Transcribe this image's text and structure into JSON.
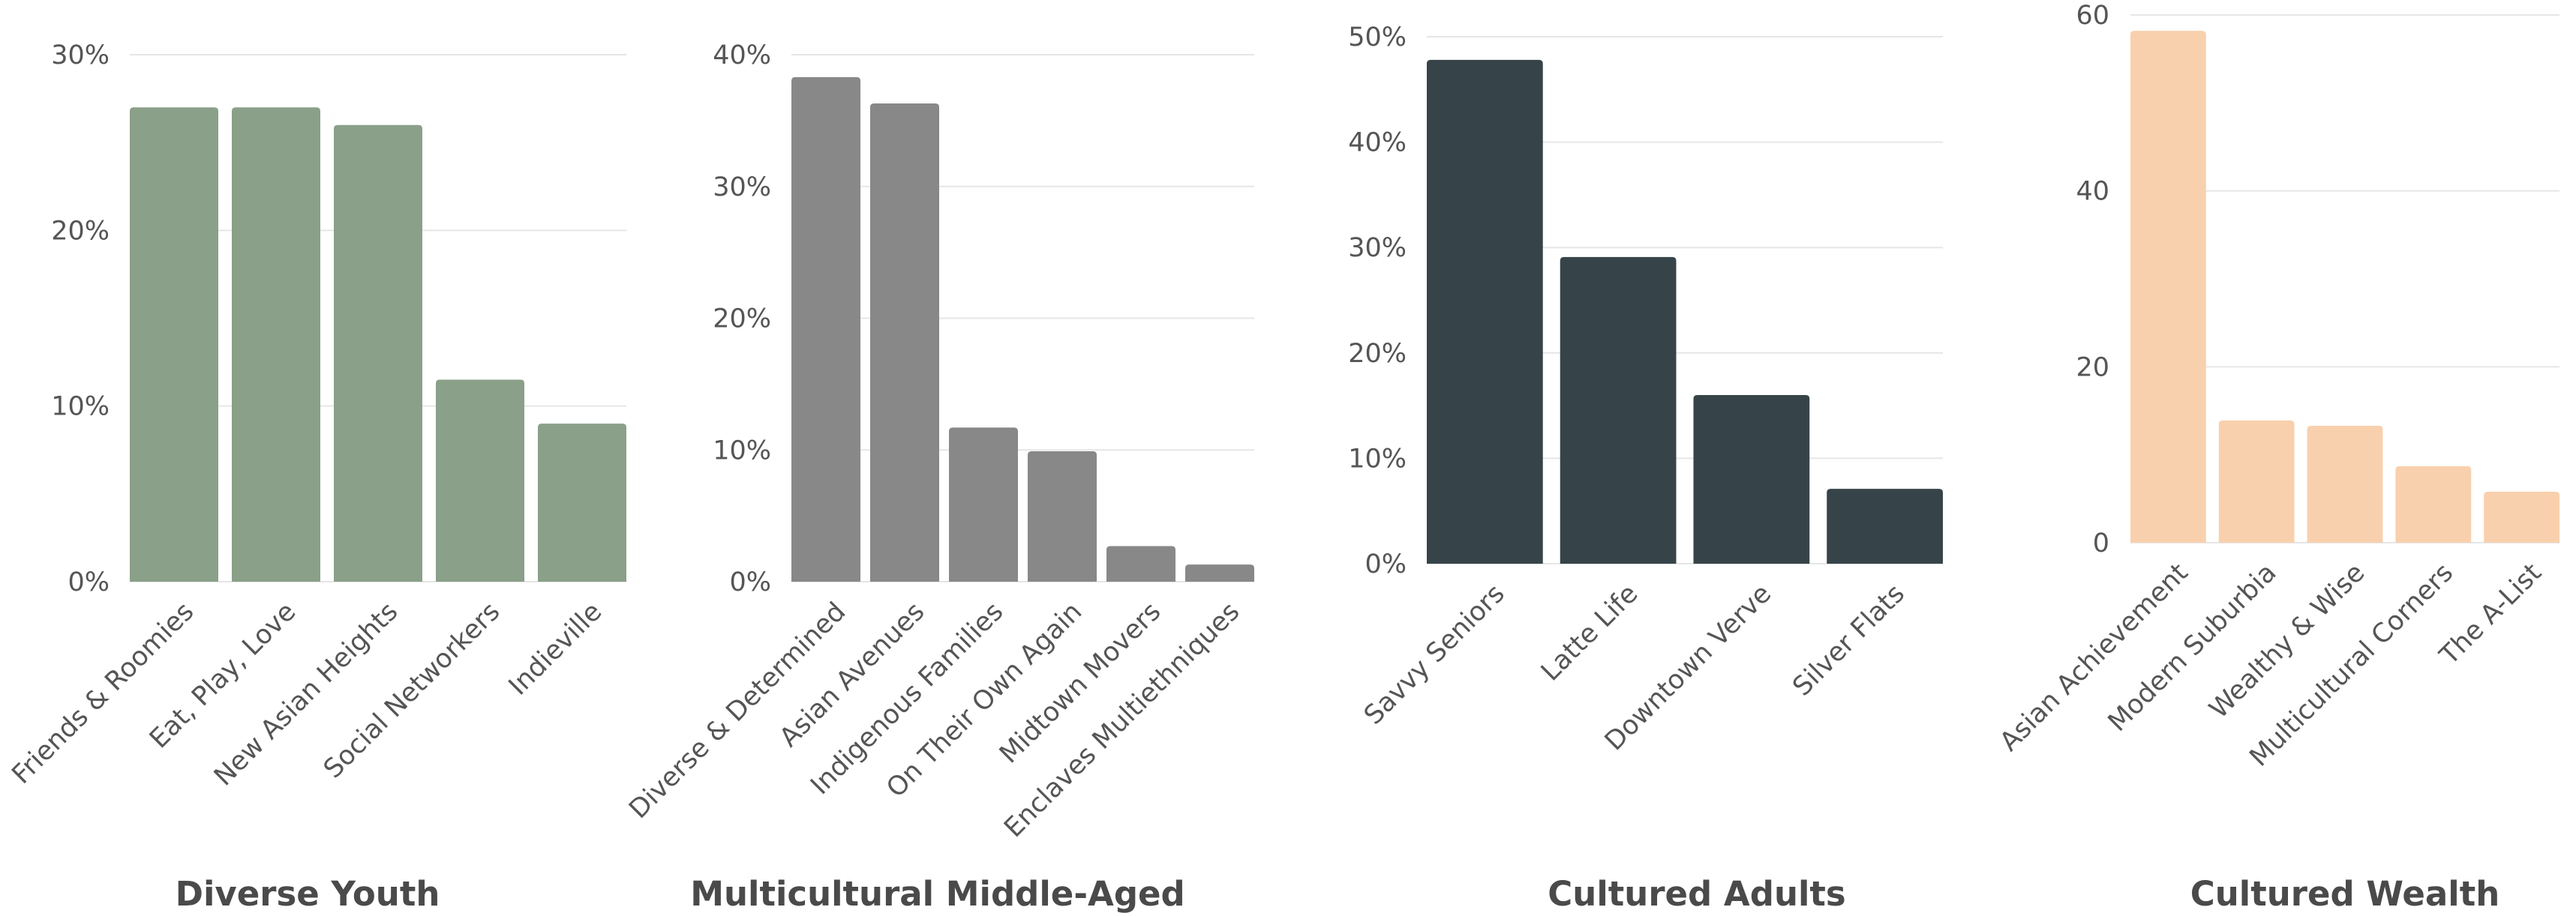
{
  "chart_data": [
    {
      "type": "bar",
      "title": "Diverse Youth",
      "color": "#8aa088",
      "categories": [
        "Friends & Roomies",
        "Eat, Play, Love",
        "New Asian Heights",
        "Social Networkers",
        "Indieville"
      ],
      "values": [
        27,
        27,
        26,
        11.5,
        9
      ],
      "ylim": [
        0,
        30
      ],
      "yticks": [
        0,
        10,
        20,
        30
      ],
      "ytick_labels": [
        "0%",
        "10%",
        "20%",
        "30%"
      ],
      "grid": true
    },
    {
      "type": "bar",
      "title": "Multicultural Middle-Aged",
      "color": "#888888",
      "categories": [
        "Diverse & Determined",
        "Asian Avenues",
        "Indigenous Families",
        "On Their Own Again",
        "Midtown Movers",
        "Enclaves Multiethniques"
      ],
      "values": [
        38.3,
        36.3,
        11.7,
        9.9,
        2.7,
        1.3
      ],
      "ylim": [
        0,
        40
      ],
      "yticks": [
        0,
        10,
        20,
        30,
        40
      ],
      "ytick_labels": [
        "0%",
        "10%",
        "20%",
        "30%",
        "40%"
      ],
      "grid": true
    },
    {
      "type": "bar",
      "title": "Cultured Adults",
      "color": "#364449",
      "categories": [
        "Savvy Seniors",
        "Latte Life",
        "Downtown Verve",
        "Silver Flats"
      ],
      "values": [
        47.8,
        29.1,
        16,
        7.1
      ],
      "ylim": [
        0,
        50
      ],
      "yticks": [
        0,
        10,
        20,
        30,
        40,
        50
      ],
      "ytick_labels": [
        "0%",
        "10%",
        "20%",
        "30%",
        "40%",
        "50%"
      ],
      "grid": true
    },
    {
      "type": "bar",
      "title": "Cultured Wealth",
      "color": "#f9d0ad",
      "categories": [
        "Asian Achievement",
        "Modern Suburbia",
        "Wealthy & Wise",
        "Multicultural Corners",
        "The A-List"
      ],
      "values": [
        58.2,
        13.9,
        13.3,
        8.7,
        5.8
      ],
      "ylim": [
        0,
        60
      ],
      "yticks": [
        0,
        20,
        40,
        60
      ],
      "ytick_labels": [
        "0",
        "20",
        "40",
        "60"
      ],
      "grid": true
    }
  ]
}
